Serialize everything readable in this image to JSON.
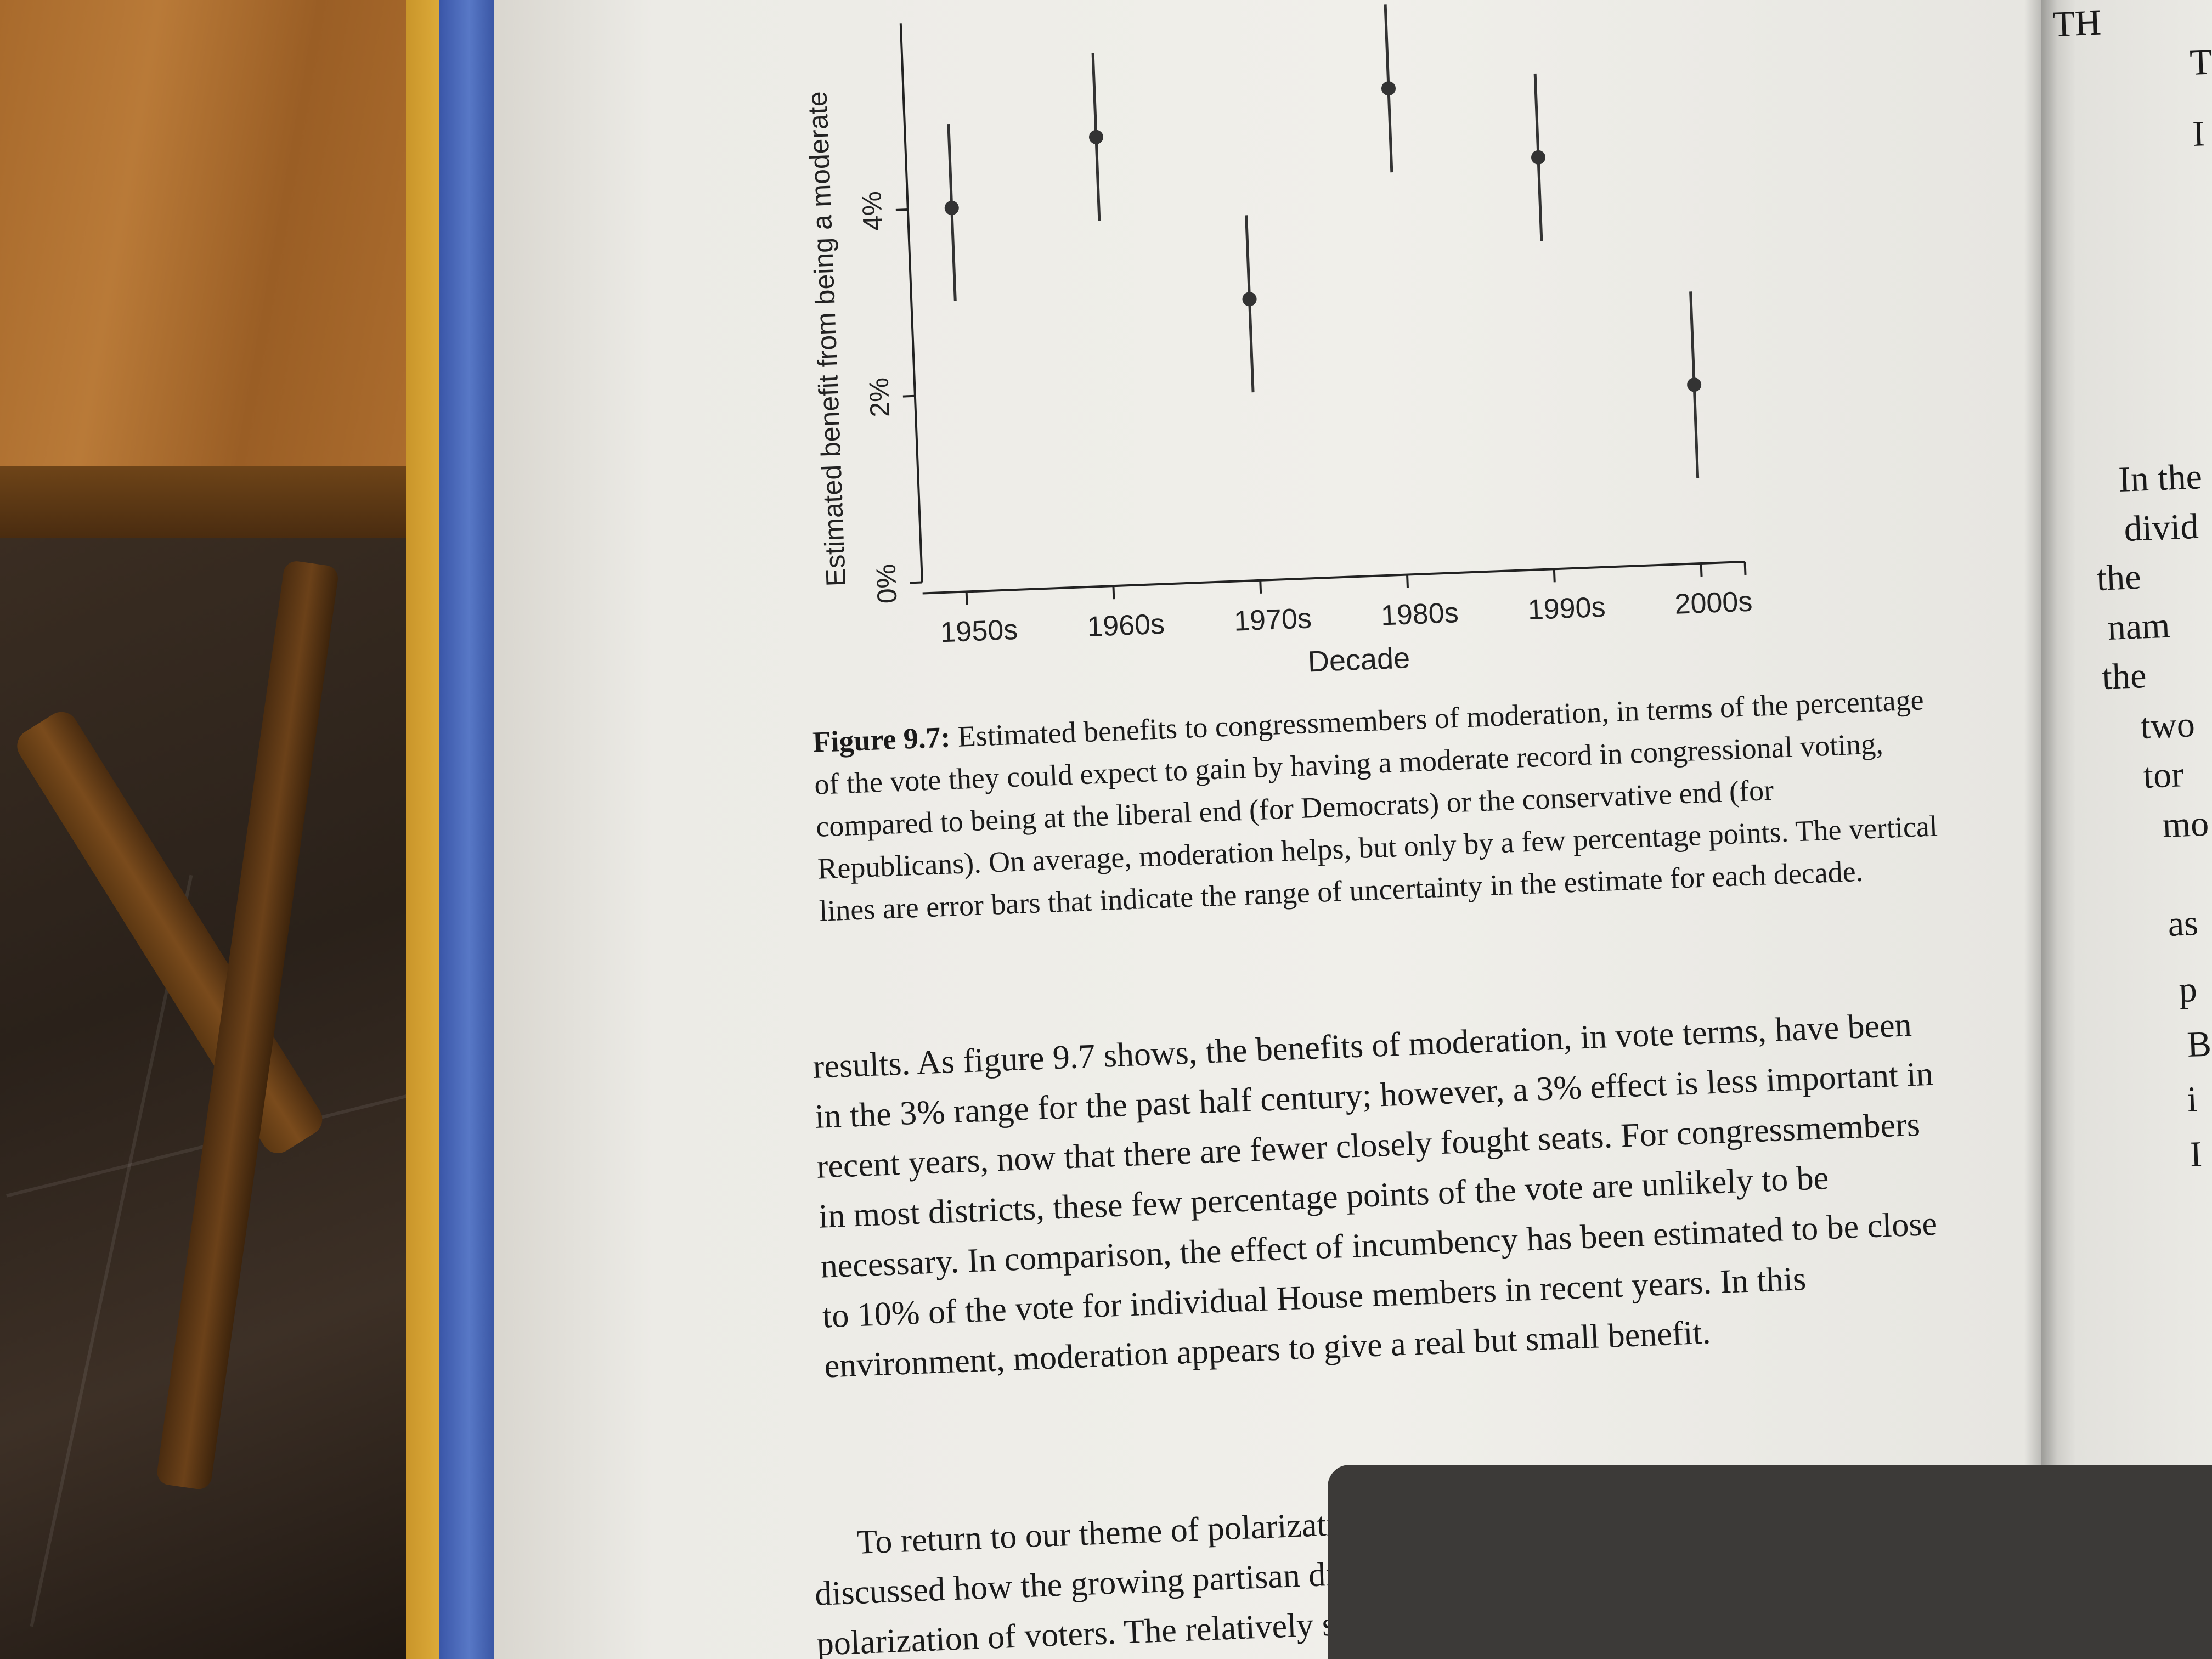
{
  "chart_data": {
    "type": "scatter",
    "categories": [
      "1950s",
      "1960s",
      "1970s",
      "1980s",
      "1990s",
      "2000s"
    ],
    "series": [
      {
        "values": [
          4.0,
          4.7,
          2.9,
          5.1,
          4.3,
          1.8
        ],
        "error_low": [
          3.0,
          3.8,
          1.9,
          4.2,
          3.4,
          0.8
        ],
        "error_high": [
          4.9,
          5.6,
          3.8,
          6.0,
          5.2,
          2.8
        ]
      }
    ],
    "xlabel": "Decade",
    "ylabel": "Estimated benefit from being a moderate",
    "ytick_labels": [
      "0%",
      "2%",
      "4%"
    ],
    "yticks": [
      0,
      2,
      4
    ],
    "ylim": [
      0,
      6
    ],
    "grid": false
  },
  "caption": {
    "label": "Figure 9.7:",
    "text": "Estimated benefits to congressmembers of moderation, in terms of the percentage of the vote they could expect to gain by having a moderate record in congressional voting, compared to being at the liberal end (for Democrats) or the conservative end (for Republicans). On average, moderation helps, but only by a few percentage points. The vertical lines are error bars that indicate the range of uncertainty in the estimate for each decade."
  },
  "body": {
    "para1": "results. As figure 9.7 shows, the benefits of moderation, in vote terms, have been in the 3% range for the past half century; however, a 3% effect is less important in recent years, now that there are fewer closely fought seats. For congressmembers in most districts, these few percentage points of the vote are unlikely to be necessary. In comparison, the effect of incumbency has been estimated to be close to 10% of the vote for individual House members in recent years. In this environment, moderation appears to give a real but small benefit.",
    "para2": "To return to our theme of polarization in red and blue America, we have discussed how the growing partisan divisions in Congress contribute to the polarization of voters. The relatively small ben-"
  },
  "right_page": {
    "lines": [
      "TH",
      "T",
      "I",
      "In the",
      "divid",
      "the",
      "nam",
      "the",
      "two",
      "tor",
      "mo",
      "as",
      "p",
      "B",
      "i",
      "I"
    ]
  },
  "colors": {
    "page": "#efeee9",
    "ink": "#1a1a1a",
    "cover_blue": "#4a68b8",
    "cover_yellow": "#d9a434",
    "wood": "#a86a2c"
  }
}
